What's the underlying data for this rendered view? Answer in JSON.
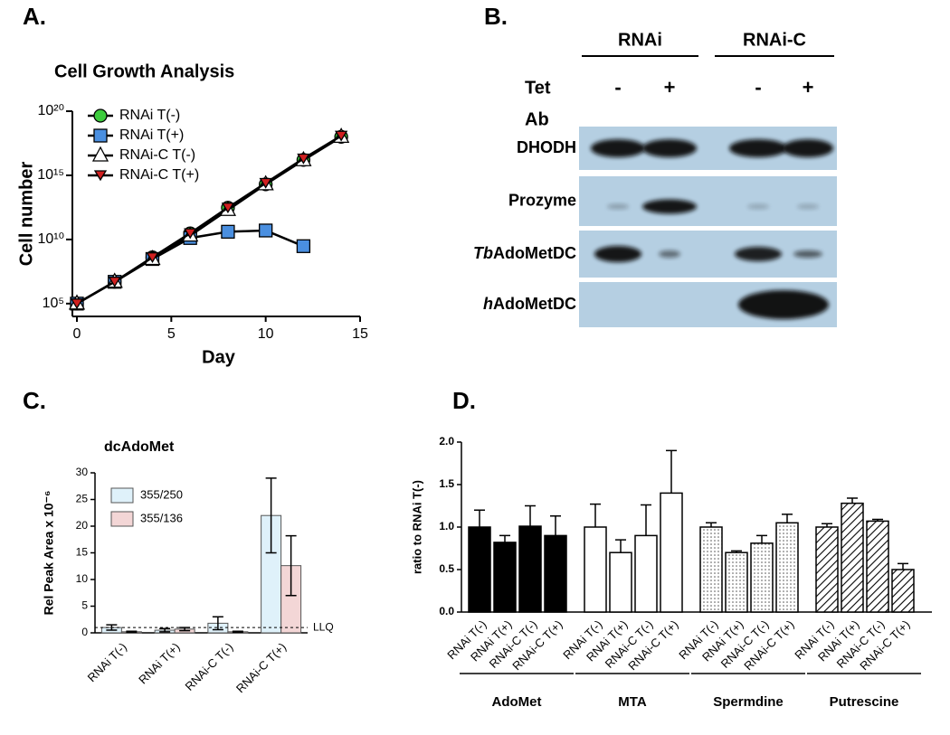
{
  "chart_data": [
    {
      "type": "line",
      "panel": "A.",
      "title": "Cell Growth Analysis",
      "xlabel": "Day",
      "ylabel": "Cell number",
      "log_y": true,
      "line_color": "#000000",
      "legend": "top-left",
      "x": [
        0,
        2,
        4,
        6,
        8,
        10,
        12,
        14
      ],
      "xlim": [
        0,
        15
      ],
      "xticks": [
        0,
        5,
        10,
        15
      ],
      "ylim": [
        10000.0,
        1e+20
      ],
      "yticks": [
        {
          "value": 100000.0,
          "label": "10⁵"
        },
        {
          "value": 10000000000.0,
          "label": "10¹⁰"
        },
        {
          "value": 1000000000000000.0,
          "label": "10¹⁵"
        },
        {
          "value": 1e+20,
          "label": "10²⁰"
        }
      ],
      "series": [
        {
          "name": "RNAi T(-)",
          "color": "#3dcc3d",
          "marker": "circle",
          "values": [
            100000.0,
            5000000.0,
            400000000.0,
            30000000000.0,
            3000000000000.0,
            200000000000000.0,
            1.6e+16,
            1e+18
          ]
        },
        {
          "name": "RNAi T(+)",
          "color": "#4a8fe0",
          "marker": "square",
          "values": [
            100000.0,
            5000000.0,
            300000000.0,
            13000000000.0,
            40000000000.0,
            50000000000.0,
            3000000000.0,
            null
          ]
        },
        {
          "name": "RNAi-C T(-)",
          "color": "#ffffff",
          "marker": "triangle",
          "values": [
            100000.0,
            5000000.0,
            300000000.0,
            20000000000.0,
            2000000000000.0,
            200000000000000.0,
            1.5e+16,
            1e+18
          ]
        },
        {
          "name": "RNAi-C T(+)",
          "color": "#d02020",
          "marker": "triangle-down",
          "values": [
            100000.0,
            5000000.0,
            400000000.0,
            30000000000.0,
            3000000000000.0,
            250000000000000.0,
            2e+16,
            1.2e+18
          ]
        }
      ]
    },
    {
      "type": "bar",
      "panel": "C.",
      "title": "dcAdoMet",
      "ylabel": "Rel Peak Area x 10⁻⁶",
      "legend": "top-left",
      "error_direction": "both",
      "categories": [
        "RNAi T(-)",
        "RNAi T(+)",
        "RNAi-C T(-)",
        "RNAi-C T(+)"
      ],
      "ylim": [
        0,
        30
      ],
      "yticks": [
        0,
        5,
        10,
        15,
        20,
        25,
        30
      ],
      "ref_line": {
        "value": 1,
        "label": "LLQ"
      },
      "series": [
        {
          "name": "355/250",
          "color": "#dff1fa",
          "values": [
            1,
            0.5,
            1.8,
            22
          ],
          "errors": [
            0.5,
            0.3,
            1.2,
            7
          ]
        },
        {
          "name": "355/136",
          "color": "#f3d6d6",
          "values": [
            0.2,
            0.7,
            0.2,
            12.6
          ],
          "errors": [
            0.1,
            0.3,
            0.1,
            5.6
          ]
        }
      ]
    },
    {
      "type": "bar",
      "panel": "D.",
      "ylabel": "ratio to RNAi T(-)",
      "error_direction": "up",
      "ylim": [
        0,
        2
      ],
      "yticks": [
        {
          "value": 0,
          "label": "0.0"
        },
        0.5,
        {
          "value": 1,
          "label": "1.0"
        },
        1.5,
        {
          "value": 2,
          "label": "2.0"
        }
      ],
      "groups": [
        {
          "name": "AdoMet",
          "pattern": "solid",
          "categories": [
            "RNAi T(-)",
            "RNAi T(+)",
            "RNAi-C T(-)",
            "RNAi-C T(+)"
          ],
          "values": [
            1.0,
            0.82,
            1.01,
            0.9
          ],
          "errors": [
            0.2,
            0.08,
            0.24,
            0.23
          ]
        },
        {
          "name": "MTA",
          "pattern": "open",
          "categories": [
            "RNAi T(-)",
            "RNAi T(+)",
            "RNAi-C T(-)",
            "RNAi-C T(+)"
          ],
          "values": [
            1.0,
            0.7,
            0.9,
            1.4
          ],
          "errors": [
            0.27,
            0.15,
            0.36,
            0.5
          ]
        },
        {
          "name": "Spermdine",
          "pattern": "dotted",
          "categories": [
            "RNAi T(-)",
            "RNAi T(+)",
            "RNAi-C T(-)",
            "RNAi-C T(+)"
          ],
          "values": [
            1.0,
            0.7,
            0.81,
            1.05
          ],
          "errors": [
            0.05,
            0.02,
            0.09,
            0.1
          ]
        },
        {
          "name": "Putrescine",
          "pattern": "hatched",
          "categories": [
            "RNAi T(-)",
            "RNAi T(+)",
            "RNAi-C T(-)",
            "RNAi-C T(+)"
          ],
          "values": [
            1.0,
            1.28,
            1.07,
            0.5
          ],
          "errors": [
            0.04,
            0.06,
            0.02,
            0.07
          ]
        }
      ]
    }
  ],
  "blot": {
    "panel": "B.",
    "groups": [
      "RNAi",
      "RNAi-C"
    ],
    "condition_label": "Tet",
    "conditions": [
      "-",
      "+",
      "-",
      "+"
    ],
    "antibody_label": "Ab",
    "antibodies": [
      {
        "text": "DHODH"
      },
      {
        "text": "Prozyme"
      },
      {
        "italic": "Tb",
        "text": "AdoMetDC"
      },
      {
        "italic": "h",
        "text": "AdoMetDC"
      }
    ]
  }
}
